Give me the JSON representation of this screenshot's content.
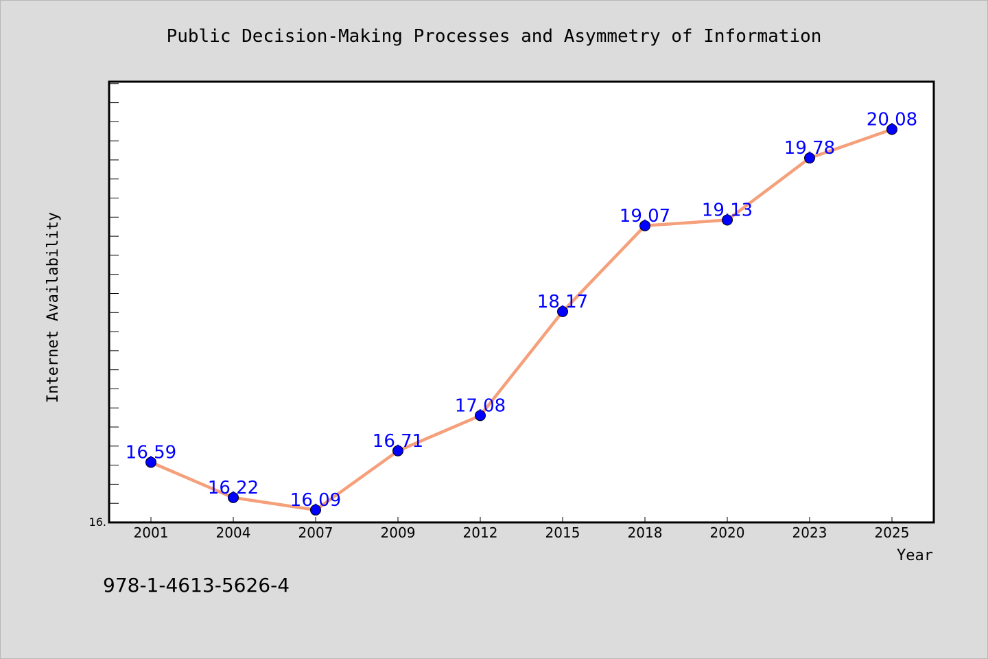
{
  "chart_data": {
    "type": "line",
    "title": "Public Decision-Making Processes and Asymmetry of Information",
    "xlabel": "Year",
    "ylabel": "Internet Availability",
    "categories": [
      "2001",
      "2004",
      "2007",
      "2009",
      "2012",
      "2015",
      "2018",
      "2020",
      "2023",
      "2025"
    ],
    "series": [
      {
        "values": [
          16.59,
          16.22,
          16.09,
          16.71,
          17.08,
          18.17,
          19.07,
          19.13,
          19.78,
          20.08
        ],
        "data_labels": [
          "16.59",
          "16.22",
          "16.09",
          "16.71",
          "17.08",
          "18.17",
          "19.07",
          "19.13",
          "19.78",
          "20.08"
        ],
        "line_color": "#f5a07a",
        "marker_color": "#0000ff"
      }
    ],
    "ylim": [
      15.96,
      20.58
    ],
    "y_tick_labels": [
      "16."
    ],
    "grid": false,
    "legend": "none"
  },
  "footnote": "978-1-4613-5626-4",
  "colors": {
    "background": "#dcdcdc",
    "plot_background": "#ffffff",
    "line": "#f5a07a",
    "marker": "#0000ff",
    "data_label": "#0000ff"
  }
}
